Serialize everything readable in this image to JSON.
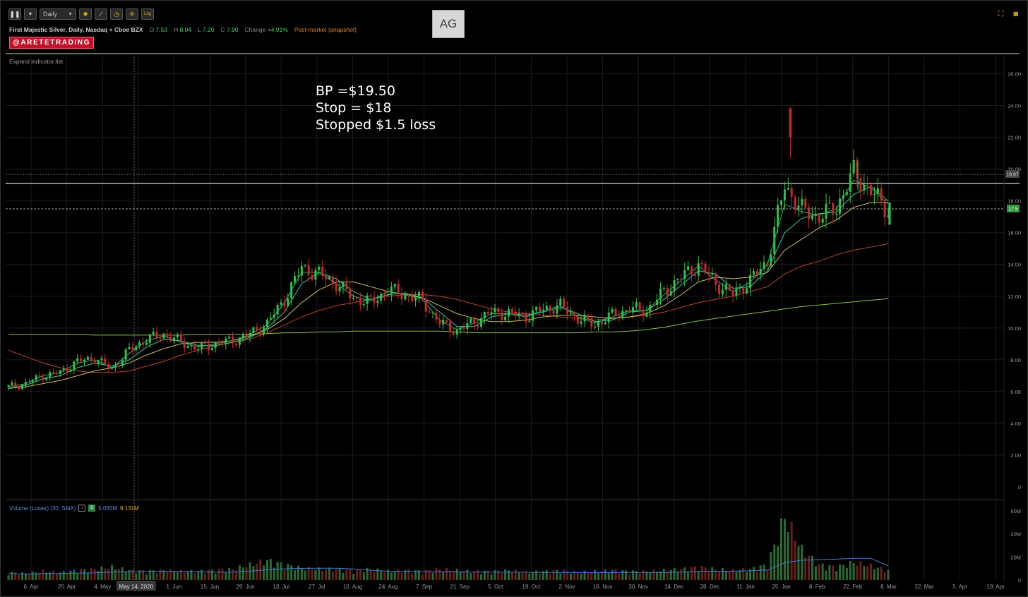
{
  "toolbar": {
    "pause_icon": "pause-bars-icon",
    "interval": "Daily",
    "icons": [
      "gear-icon",
      "drawing-tool-icon",
      "clock-icon",
      "crosshair-icon",
      "log-scale-icon"
    ],
    "log_label": "Log"
  },
  "header": {
    "name": "First Majestic Silver, Daily, Nasdaq + Cboe BZX",
    "open_label": "O",
    "open": "7.53",
    "high_label": "H",
    "high": "8.04",
    "low_label": "L",
    "low": "7.20",
    "close_label": "C",
    "close": "7.90",
    "change_label": "Change",
    "change": "+4.91%",
    "post_market": "Post-market (snapshot)"
  },
  "badge": "@ARETETRADING",
  "ticker": "AG",
  "expand_label": "Expand indicator list",
  "annotation": [
    "BP =$19.50",
    "Stop = $18",
    "Stopped $1.5 loss"
  ],
  "volume_legend": {
    "label": "Volume (Lower) (30, SMA)",
    "box1": "i",
    "box2": "D",
    "value1": "5.065M",
    "value2": "9.131M"
  },
  "colors": {
    "up": "#2fc14a",
    "down": "#c62828",
    "ma_fast": "#3fe0c0",
    "ma_mid": "#e8d060",
    "ma_slow": "#d04a2a",
    "ma_long": "#9fd44a",
    "vol_sma": "#3a78d0",
    "price_tag": "#2e9a3e"
  },
  "chart_data": {
    "type": "candlestick",
    "price_axis": {
      "ticks": [
        "26.00",
        "24.00",
        "22.00",
        "20.00",
        "18.00",
        "16.00",
        "14.00",
        "12.00",
        "10.00",
        "8.00",
        "6.00",
        "4.00",
        "2.00",
        "0"
      ],
      "range": [
        0,
        27
      ]
    },
    "volume_axis": {
      "ticks": [
        "60M",
        "40M",
        "20M",
        "0"
      ],
      "range": [
        0,
        60
      ]
    },
    "x_ticks": [
      "6. Apr",
      "20. Apr",
      "4. May",
      "May 14, 2020",
      "1. Jun",
      "15. Jun",
      "29. Jun",
      "13. Jul",
      "27. Jul",
      "10. Aug",
      "24. Aug",
      "7. Sep",
      "21. Sep",
      "5. Oct",
      "19. Oct",
      "2. Nov",
      "16. Nov",
      "30. Nov",
      "14. Dec",
      "28. Dec",
      "11. Jan",
      "25. Jan",
      "8. Feb",
      "22. Feb",
      "8. Mar",
      "22. Mar",
      "5. Apr",
      "19. Apr"
    ],
    "crosshair_date": "May 14, 2020",
    "lines": {
      "resistance": 19.1,
      "last_price": 17.5
    },
    "price_tags": {
      "upper": "19.67",
      "last": "17.5"
    },
    "weekly_closes": [
      6.3,
      6.5,
      7.0,
      7.2,
      7.9,
      8.1,
      7.4,
      8.6,
      9.3,
      9.6,
      9.1,
      8.7,
      9.0,
      9.2,
      9.6,
      10.3,
      11.8,
      13.8,
      13.4,
      12.8,
      11.9,
      11.6,
      12.4,
      12.1,
      11.7,
      10.3,
      9.8,
      10.4,
      11.0,
      10.9,
      10.7,
      11.2,
      11.4,
      10.6,
      10.2,
      10.8,
      11.2,
      11.1,
      12.3,
      13.2,
      14.0,
      12.8,
      12.1,
      13.0,
      14.2,
      19.0,
      17.4,
      17.0,
      17.6,
      19.8,
      18.6,
      17.4
    ],
    "weekly_volume": [
      7,
      6,
      8,
      7,
      9,
      10,
      12,
      9,
      8,
      9,
      8,
      8,
      9,
      10,
      14,
      18,
      14,
      11,
      10,
      10,
      9,
      10,
      8,
      9,
      8,
      10,
      9,
      8,
      8,
      9,
      7,
      8,
      9,
      7,
      8,
      9,
      8,
      8,
      9,
      10,
      12,
      10,
      9,
      10,
      14,
      58,
      28,
      14,
      12,
      16,
      13,
      9
    ],
    "moving_averages": {
      "sma200": [
        9.6,
        9.6,
        9.6,
        9.6,
        9.6,
        9.55,
        9.55,
        9.55,
        9.55,
        9.55,
        9.55,
        9.6,
        9.6,
        9.6,
        9.6,
        9.65,
        9.7,
        9.7,
        9.75,
        9.75,
        9.8,
        9.8,
        9.8,
        9.8,
        9.8,
        9.8,
        9.75,
        9.7,
        9.7,
        9.7,
        9.7,
        9.7,
        9.7,
        9.7,
        9.75,
        9.75,
        9.8,
        9.9,
        10.05,
        10.25,
        10.45,
        10.6,
        10.75,
        10.9,
        11.05,
        11.2,
        11.35,
        11.45,
        11.55,
        11.65,
        11.75,
        11.85
      ],
      "sma50": [
        8.6,
        8.2,
        7.8,
        7.5,
        7.3,
        7.2,
        7.2,
        7.3,
        7.6,
        7.9,
        8.3,
        8.6,
        8.9,
        9.1,
        9.3,
        9.7,
        10.2,
        10.7,
        11.1,
        11.4,
        11.6,
        11.8,
        12.0,
        12.1,
        12.1,
        12.0,
        11.8,
        11.5,
        11.2,
        11.0,
        10.9,
        10.8,
        10.7,
        10.6,
        10.5,
        10.6,
        10.7,
        10.8,
        11.0,
        11.3,
        11.6,
        11.8,
        12.0,
        12.3,
        12.6,
        13.4,
        13.9,
        14.2,
        14.6,
        14.9,
        15.1,
        15.3
      ],
      "sma20": [
        6.2,
        6.3,
        6.5,
        6.7,
        7.0,
        7.3,
        7.5,
        7.8,
        8.3,
        8.7,
        9.0,
        9.1,
        9.1,
        9.2,
        9.5,
        9.9,
        10.6,
        11.6,
        12.4,
        12.9,
        12.9,
        12.6,
        12.3,
        12.1,
        11.9,
        11.4,
        10.9,
        10.6,
        10.4,
        10.4,
        10.5,
        10.7,
        10.8,
        10.8,
        10.7,
        10.6,
        10.7,
        10.9,
        11.4,
        12.1,
        12.9,
        13.2,
        13.1,
        13.2,
        13.5,
        14.9,
        15.6,
        16.3,
        16.8,
        17.6,
        17.9,
        17.9
      ],
      "sma10": [
        6.2,
        6.4,
        6.8,
        7.0,
        7.5,
        7.8,
        7.6,
        8.0,
        8.8,
        9.3,
        9.2,
        8.9,
        8.9,
        9.1,
        9.4,
        10.0,
        11.0,
        12.8,
        13.5,
        13.1,
        12.3,
        11.8,
        12.1,
        12.2,
        11.9,
        11.0,
        10.1,
        10.1,
        10.7,
        10.9,
        10.8,
        11.0,
        11.3,
        10.9,
        10.4,
        10.5,
        11.0,
        11.1,
        11.8,
        12.7,
        13.6,
        13.4,
        12.5,
        12.6,
        13.6,
        16.0,
        16.9,
        17.2,
        17.3,
        18.4,
        18.9,
        18.0
      ],
      "sma5": [
        6.3,
        6.5,
        7.0,
        7.2,
        7.8,
        8.0,
        7.5,
        8.4,
        9.2,
        9.5,
        9.1,
        8.8,
        9.0,
        9.2,
        9.6,
        10.2,
        11.6,
        13.5,
        13.5,
        12.8,
        12.0,
        11.7,
        12.3,
        12.1,
        11.8,
        10.5,
        9.9,
        10.3,
        10.9,
        10.9,
        10.7,
        11.1,
        11.4,
        10.7,
        10.3,
        10.7,
        11.1,
        11.1,
        12.1,
        13.0,
        13.9,
        13.0,
        12.3,
        12.9,
        14.0,
        17.8,
        17.3,
        17.1,
        17.5,
        19.3,
        18.8,
        17.8
      ]
    },
    "markers": {
      "spike_high": 23.9,
      "spike_low": 20.7,
      "recent_high": 20.5
    }
  }
}
